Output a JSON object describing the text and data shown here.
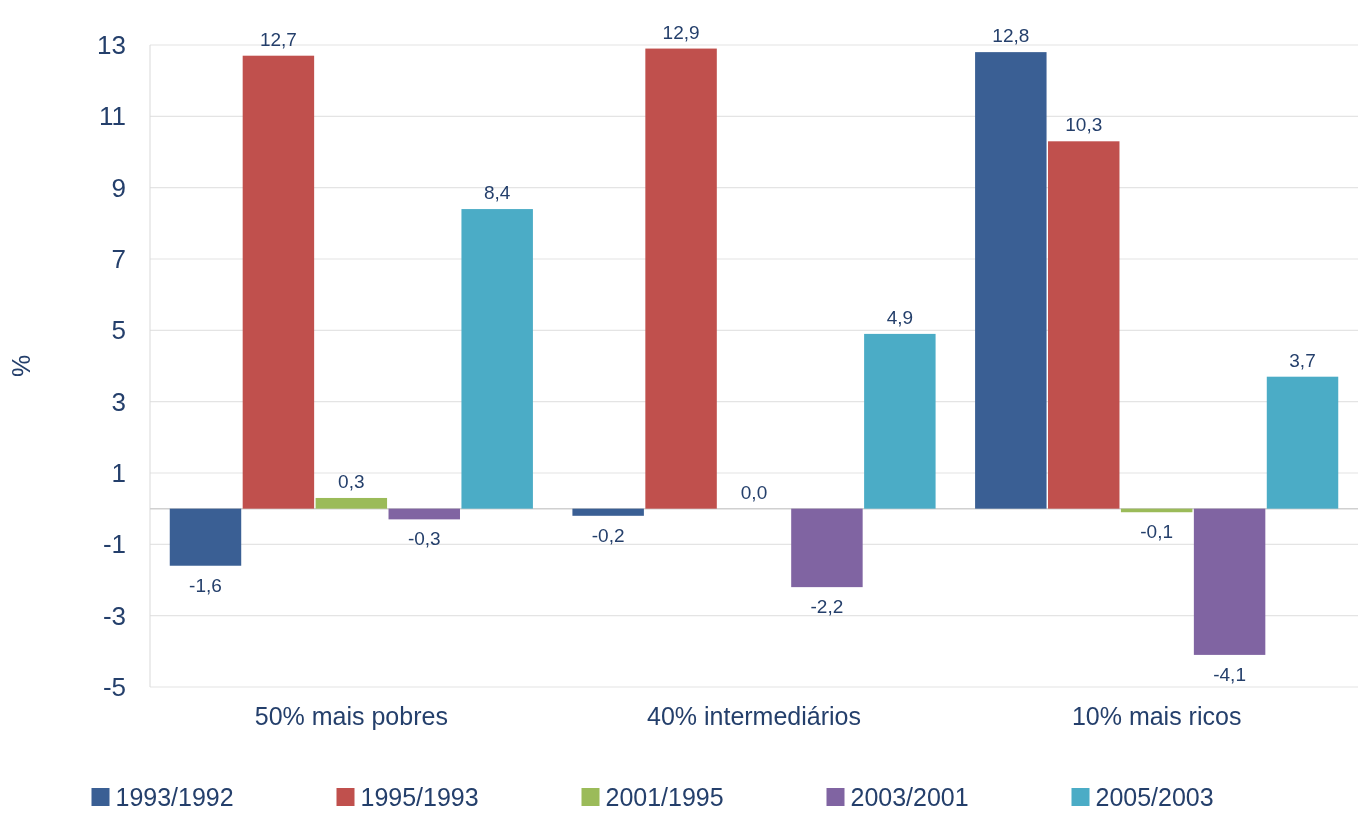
{
  "chart_data": {
    "type": "bar",
    "ylabel": "%",
    "categories": [
      "50% mais pobres",
      "40% intermediários",
      "10% mais ricos"
    ],
    "series": [
      {
        "name": "1993/1992",
        "color": "#3a5f94",
        "values": [
          -1.6,
          -0.2,
          12.8
        ],
        "value_labels": [
          "-1,6",
          "-0,2",
          "12,8"
        ]
      },
      {
        "name": "1995/1993",
        "color": "#c0504d",
        "values": [
          12.7,
          12.9,
          10.3
        ],
        "value_labels": [
          "12,7",
          "12,9",
          "10,3"
        ]
      },
      {
        "name": "2001/1995",
        "color": "#9bbb59",
        "values": [
          0.3,
          0.0,
          -0.1
        ],
        "value_labels": [
          "0,3",
          "0,0",
          "-0,1"
        ]
      },
      {
        "name": "2003/2001",
        "color": "#8064a2",
        "values": [
          -0.3,
          -2.2,
          -4.1
        ],
        "value_labels": [
          "-0,3",
          "-2,2",
          "-4,1"
        ]
      },
      {
        "name": "2005/2003",
        "color": "#4bacc6",
        "values": [
          8.4,
          4.9,
          3.7
        ],
        "value_labels": [
          "8,4",
          "4,9",
          "3,7"
        ]
      }
    ],
    "ylim": [
      -5,
      13
    ],
    "yticks": [
      -5,
      -3,
      -1,
      1,
      3,
      5,
      7,
      9,
      11,
      13
    ],
    "grid": "y",
    "legend": "bottom"
  }
}
